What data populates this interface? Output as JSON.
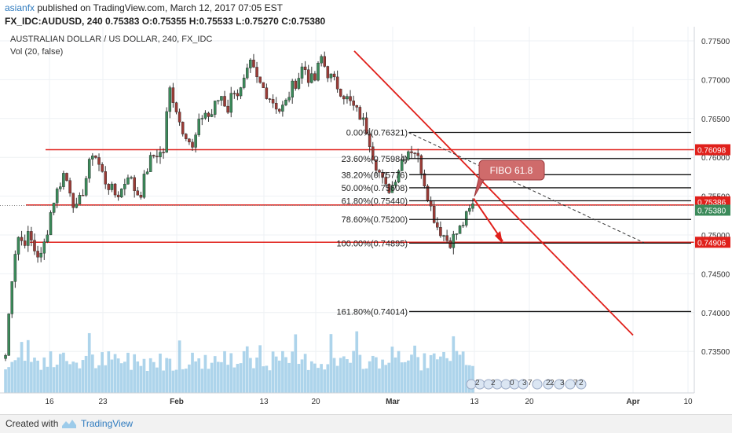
{
  "header": {
    "author": "asianfx",
    "published": "published on TradingView.com, March 12, 2017 07:05 EST",
    "ohlc": "FX_IDC:AUDUSD, 240  0.75383  O:0.75355  H:0.75533  L:0.75270  C:0.75380"
  },
  "chart_title": "AUSTRALIAN DOLLAR / US DOLLAR, 240, FX_IDC",
  "volume_label": "Vol (20, false)",
  "footer": {
    "created": "Created with",
    "brand": "TradingView"
  },
  "colors": {
    "up": "#3b8a5a",
    "down": "#9b3b36",
    "line": "#e0201b",
    "fib": "#111111",
    "volume": "#9fcde8"
  },
  "chart_data": {
    "type": "candlestick",
    "symbol": "AUDUSD",
    "ylim": [
      0.73,
      0.7765
    ],
    "y_ticks": [
      "0.77500",
      "0.77000",
      "0.76500",
      "0.76000",
      "0.75500",
      "0.75000",
      "0.74500",
      "0.74000",
      "0.73500"
    ],
    "x_ticks": [
      "16",
      "23",
      "Feb",
      "13",
      "20",
      "Mar",
      "13",
      "20",
      "Apr",
      "10"
    ],
    "price_path": [
      [
        0.7345,
        0.744,
        0.75,
        0.749,
        0.75,
        0.748,
        0.747,
        0.75,
        0.754,
        0.756,
        0.758,
        0.756,
        0.753,
        0.755,
        0.758,
        0.761,
        0.759,
        0.757,
        0.756,
        0.755,
        0.756,
        0.758,
        0.756,
        0.755,
        0.758,
        0.76,
        0.7605
      ],
      [
        0.7605,
        0.769,
        0.767,
        0.764,
        0.763,
        0.761,
        0.764,
        0.766,
        0.765,
        0.767,
        0.768,
        0.766,
        0.769,
        0.768,
        0.77,
        0.772,
        0.77,
        0.769,
        0.768,
        0.767,
        0.766,
        0.767,
        0.769,
        0.77,
        0.772,
        0.77
      ],
      [
        0.77,
        0.773,
        0.771,
        0.77,
        0.769,
        0.768,
        0.767,
        0.766,
        0.765,
        0.7632,
        0.76,
        0.758,
        0.756,
        0.756,
        0.758,
        0.76,
        0.761,
        0.761,
        0.759,
        0.756,
        0.753,
        0.751,
        0.75,
        0.749,
        0.75,
        0.751,
        0.7525,
        0.7538
      ]
    ],
    "horizontal_levels": [
      {
        "label": "0.76098",
        "value": 0.76098
      },
      {
        "label": "0.75386",
        "value": 0.75386
      },
      {
        "label": "0.75380",
        "value": 0.7538
      },
      {
        "label": "0.74906",
        "value": 0.74906
      }
    ],
    "fibonacci": [
      {
        "label": "0.00%(0.76321)",
        "value": 0.76321
      },
      {
        "label": "23.60%(0.75984)",
        "value": 0.75984
      },
      {
        "label": "38.20%(0.75776)",
        "value": 0.75776
      },
      {
        "label": "50.00%(0.75608)",
        "value": 0.75608
      },
      {
        "label": "61.80%(0.75440)",
        "value": 0.7544
      },
      {
        "label": "78.60%(0.75200)",
        "value": 0.752
      },
      {
        "label": "100.00%(0.74895)",
        "value": 0.74895
      },
      {
        "label": "161.80%(0.74014)",
        "value": 0.74014
      }
    ],
    "trendline": {
      "from": 0.7737,
      "to": 0.7371
    },
    "dashed_line": {
      "from": 0.7632,
      "to": 0.749
    },
    "annotation": "FIBO 61.8",
    "event_labels": [
      "2",
      "2",
      "0",
      "3",
      "7",
      "2",
      "2",
      "3",
      "7",
      "2"
    ]
  }
}
